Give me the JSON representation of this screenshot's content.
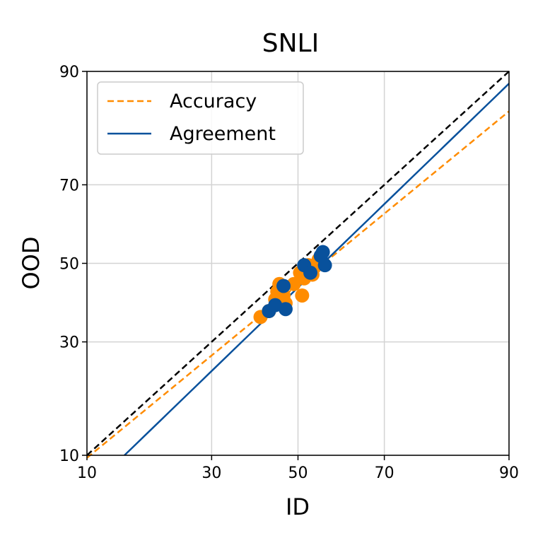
{
  "chart_data": {
    "type": "scatter",
    "title": "SNLI",
    "xlabel": "ID",
    "ylabel": "OOD",
    "xlim": [
      10,
      90
    ],
    "ylim": [
      10,
      90
    ],
    "xscale": "probit",
    "yscale": "probit",
    "xticks": [
      10,
      30,
      50,
      70,
      90
    ],
    "yticks": [
      10,
      30,
      50,
      70,
      90
    ],
    "grid": true,
    "legend_position": "top-left",
    "series": [
      {
        "name": "Accuracy",
        "color": "#ff8c00",
        "line_style": "dashed",
        "fit_line": [
          [
            10,
            9.7
          ],
          [
            90,
            84.5
          ]
        ],
        "points": [
          {
            "x": 41.0,
            "y": 36.0
          },
          {
            "x": 43.0,
            "y": 37.5
          },
          {
            "x": 44.5,
            "y": 40.5
          },
          {
            "x": 45.0,
            "y": 42.5
          },
          {
            "x": 45.5,
            "y": 44.5
          },
          {
            "x": 46.5,
            "y": 41.5
          },
          {
            "x": 47.0,
            "y": 39.5
          },
          {
            "x": 49.0,
            "y": 44.5
          },
          {
            "x": 50.5,
            "y": 47.5
          },
          {
            "x": 51.0,
            "y": 41.5
          },
          {
            "x": 51.5,
            "y": 46.0
          },
          {
            "x": 52.5,
            "y": 49.5
          },
          {
            "x": 53.5,
            "y": 47.0
          },
          {
            "x": 54.0,
            "y": 49.0
          },
          {
            "x": 55.0,
            "y": 51.0
          }
        ]
      },
      {
        "name": "Agreement",
        "color": "#08519c",
        "line_style": "solid",
        "fit_line": [
          [
            14.6,
            10.0
          ],
          [
            90,
            88.5
          ]
        ],
        "points": [
          {
            "x": 43.0,
            "y": 37.5
          },
          {
            "x": 44.5,
            "y": 39.0
          },
          {
            "x": 46.5,
            "y": 44.0
          },
          {
            "x": 47.0,
            "y": 38.0
          },
          {
            "x": 51.5,
            "y": 49.5
          },
          {
            "x": 53.0,
            "y": 47.5
          },
          {
            "x": 55.5,
            "y": 52.0
          },
          {
            "x": 56.0,
            "y": 53.0
          },
          {
            "x": 56.5,
            "y": 49.5
          }
        ]
      }
    ],
    "reference_line": {
      "color": "#000000",
      "line_style": "dashed",
      "from": [
        10,
        10
      ],
      "to": [
        90,
        90
      ]
    }
  }
}
